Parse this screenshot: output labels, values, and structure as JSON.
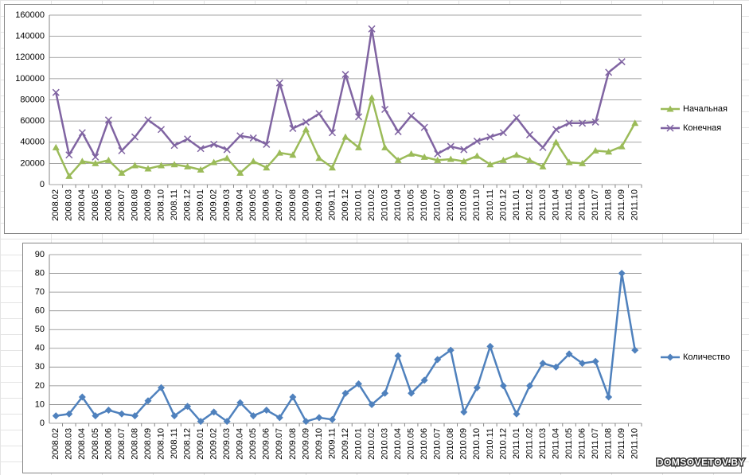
{
  "chart_data": [
    {
      "type": "line",
      "categories": [
        "2008.02",
        "2008.03",
        "2008.04",
        "2008.05",
        "2008.06",
        "2008.07",
        "2008.08",
        "2008.09",
        "2008.10",
        "2008.11",
        "2008.12",
        "2009.01",
        "2009.02",
        "2009.03",
        "2009.04",
        "2009.05",
        "2009.06",
        "2009.07",
        "2009.08",
        "2009.09",
        "2009.10",
        "2009.11",
        "2009.12",
        "2010.01",
        "2010.02",
        "2010.03",
        "2010.04",
        "2010.05",
        "2010.06",
        "2010.07",
        "2010.08",
        "2010.09",
        "2010.10",
        "2010.11",
        "2010.12",
        "2011.01",
        "2011.02",
        "2011.03",
        "2011.04",
        "2011.05",
        "2011.06",
        "2011.07",
        "2011.08",
        "2011.09",
        "2011.10"
      ],
      "series": [
        {
          "name": "Начальная",
          "color": "#9bbb59",
          "marker": "triangle",
          "values": [
            35000,
            8000,
            22000,
            20000,
            23000,
            11000,
            18000,
            15000,
            18000,
            19000,
            17000,
            14000,
            21000,
            25000,
            11000,
            22000,
            16000,
            30000,
            28000,
            52000,
            25000,
            16000,
            45000,
            35000,
            82000,
            35000,
            23000,
            29000,
            26000,
            23000,
            24000,
            22000,
            27000,
            19000,
            23000,
            28000,
            23000,
            17000,
            40000,
            21000,
            20000,
            32000,
            31000,
            36000,
            58000
          ]
        },
        {
          "name": "Конечная",
          "color": "#8064a2",
          "marker": "x",
          "values": [
            87000,
            28000,
            49000,
            26000,
            61000,
            32000,
            45000,
            61000,
            52000,
            37000,
            43000,
            34000,
            38000,
            33000,
            46000,
            44000,
            38000,
            96000,
            53000,
            59000,
            67000,
            49000,
            104000,
            64000,
            147000,
            71000,
            50000,
            65000,
            54000,
            29000,
            36000,
            33000,
            41000,
            45000,
            49000,
            63000,
            47000,
            35000,
            52000,
            58000,
            58000,
            59000,
            106000,
            116000,
            null
          ]
        }
      ],
      "ylim": [
        0,
        160000
      ],
      "yticks": [
        0,
        20000,
        40000,
        60000,
        80000,
        100000,
        120000,
        140000,
        160000
      ],
      "grid": true,
      "legend": "right"
    },
    {
      "type": "line",
      "categories": [
        "2008.02",
        "2008.03",
        "2008.04",
        "2008.05",
        "2008.06",
        "2008.07",
        "2008.08",
        "2008.09",
        "2008.10",
        "2008.11",
        "2008.12",
        "2009.01",
        "2009.02",
        "2009.03",
        "2009.04",
        "2009.05",
        "2009.06",
        "2009.07",
        "2009.08",
        "2009.09",
        "2009.10",
        "2009.11",
        "2009.12",
        "2010.01",
        "2010.02",
        "2010.03",
        "2010.04",
        "2010.05",
        "2010.06",
        "2010.07",
        "2010.08",
        "2010.09",
        "2010.10",
        "2010.11",
        "2010.12",
        "2011.01",
        "2011.02",
        "2011.03",
        "2011.04",
        "2011.05",
        "2011.06",
        "2011.07",
        "2011.08",
        "2011.09",
        "2011.10"
      ],
      "series": [
        {
          "name": "Количество",
          "color": "#4f81bd",
          "marker": "diamond",
          "values": [
            4,
            5,
            14,
            4,
            7,
            5,
            4,
            12,
            19,
            4,
            9,
            1,
            6,
            1,
            11,
            4,
            7,
            3,
            14,
            1,
            3,
            2,
            16,
            21,
            10,
            16,
            36,
            16,
            23,
            34,
            39,
            6,
            19,
            41,
            20,
            5,
            20,
            32,
            30,
            37,
            32,
            33,
            14,
            80,
            39
          ]
        }
      ],
      "ylim": [
        0,
        90
      ],
      "yticks": [
        0,
        10,
        20,
        30,
        40,
        50,
        60,
        70,
        80,
        90
      ],
      "grid": true,
      "legend": "right"
    }
  ],
  "watermark": "DOMSOVETOV.BY"
}
